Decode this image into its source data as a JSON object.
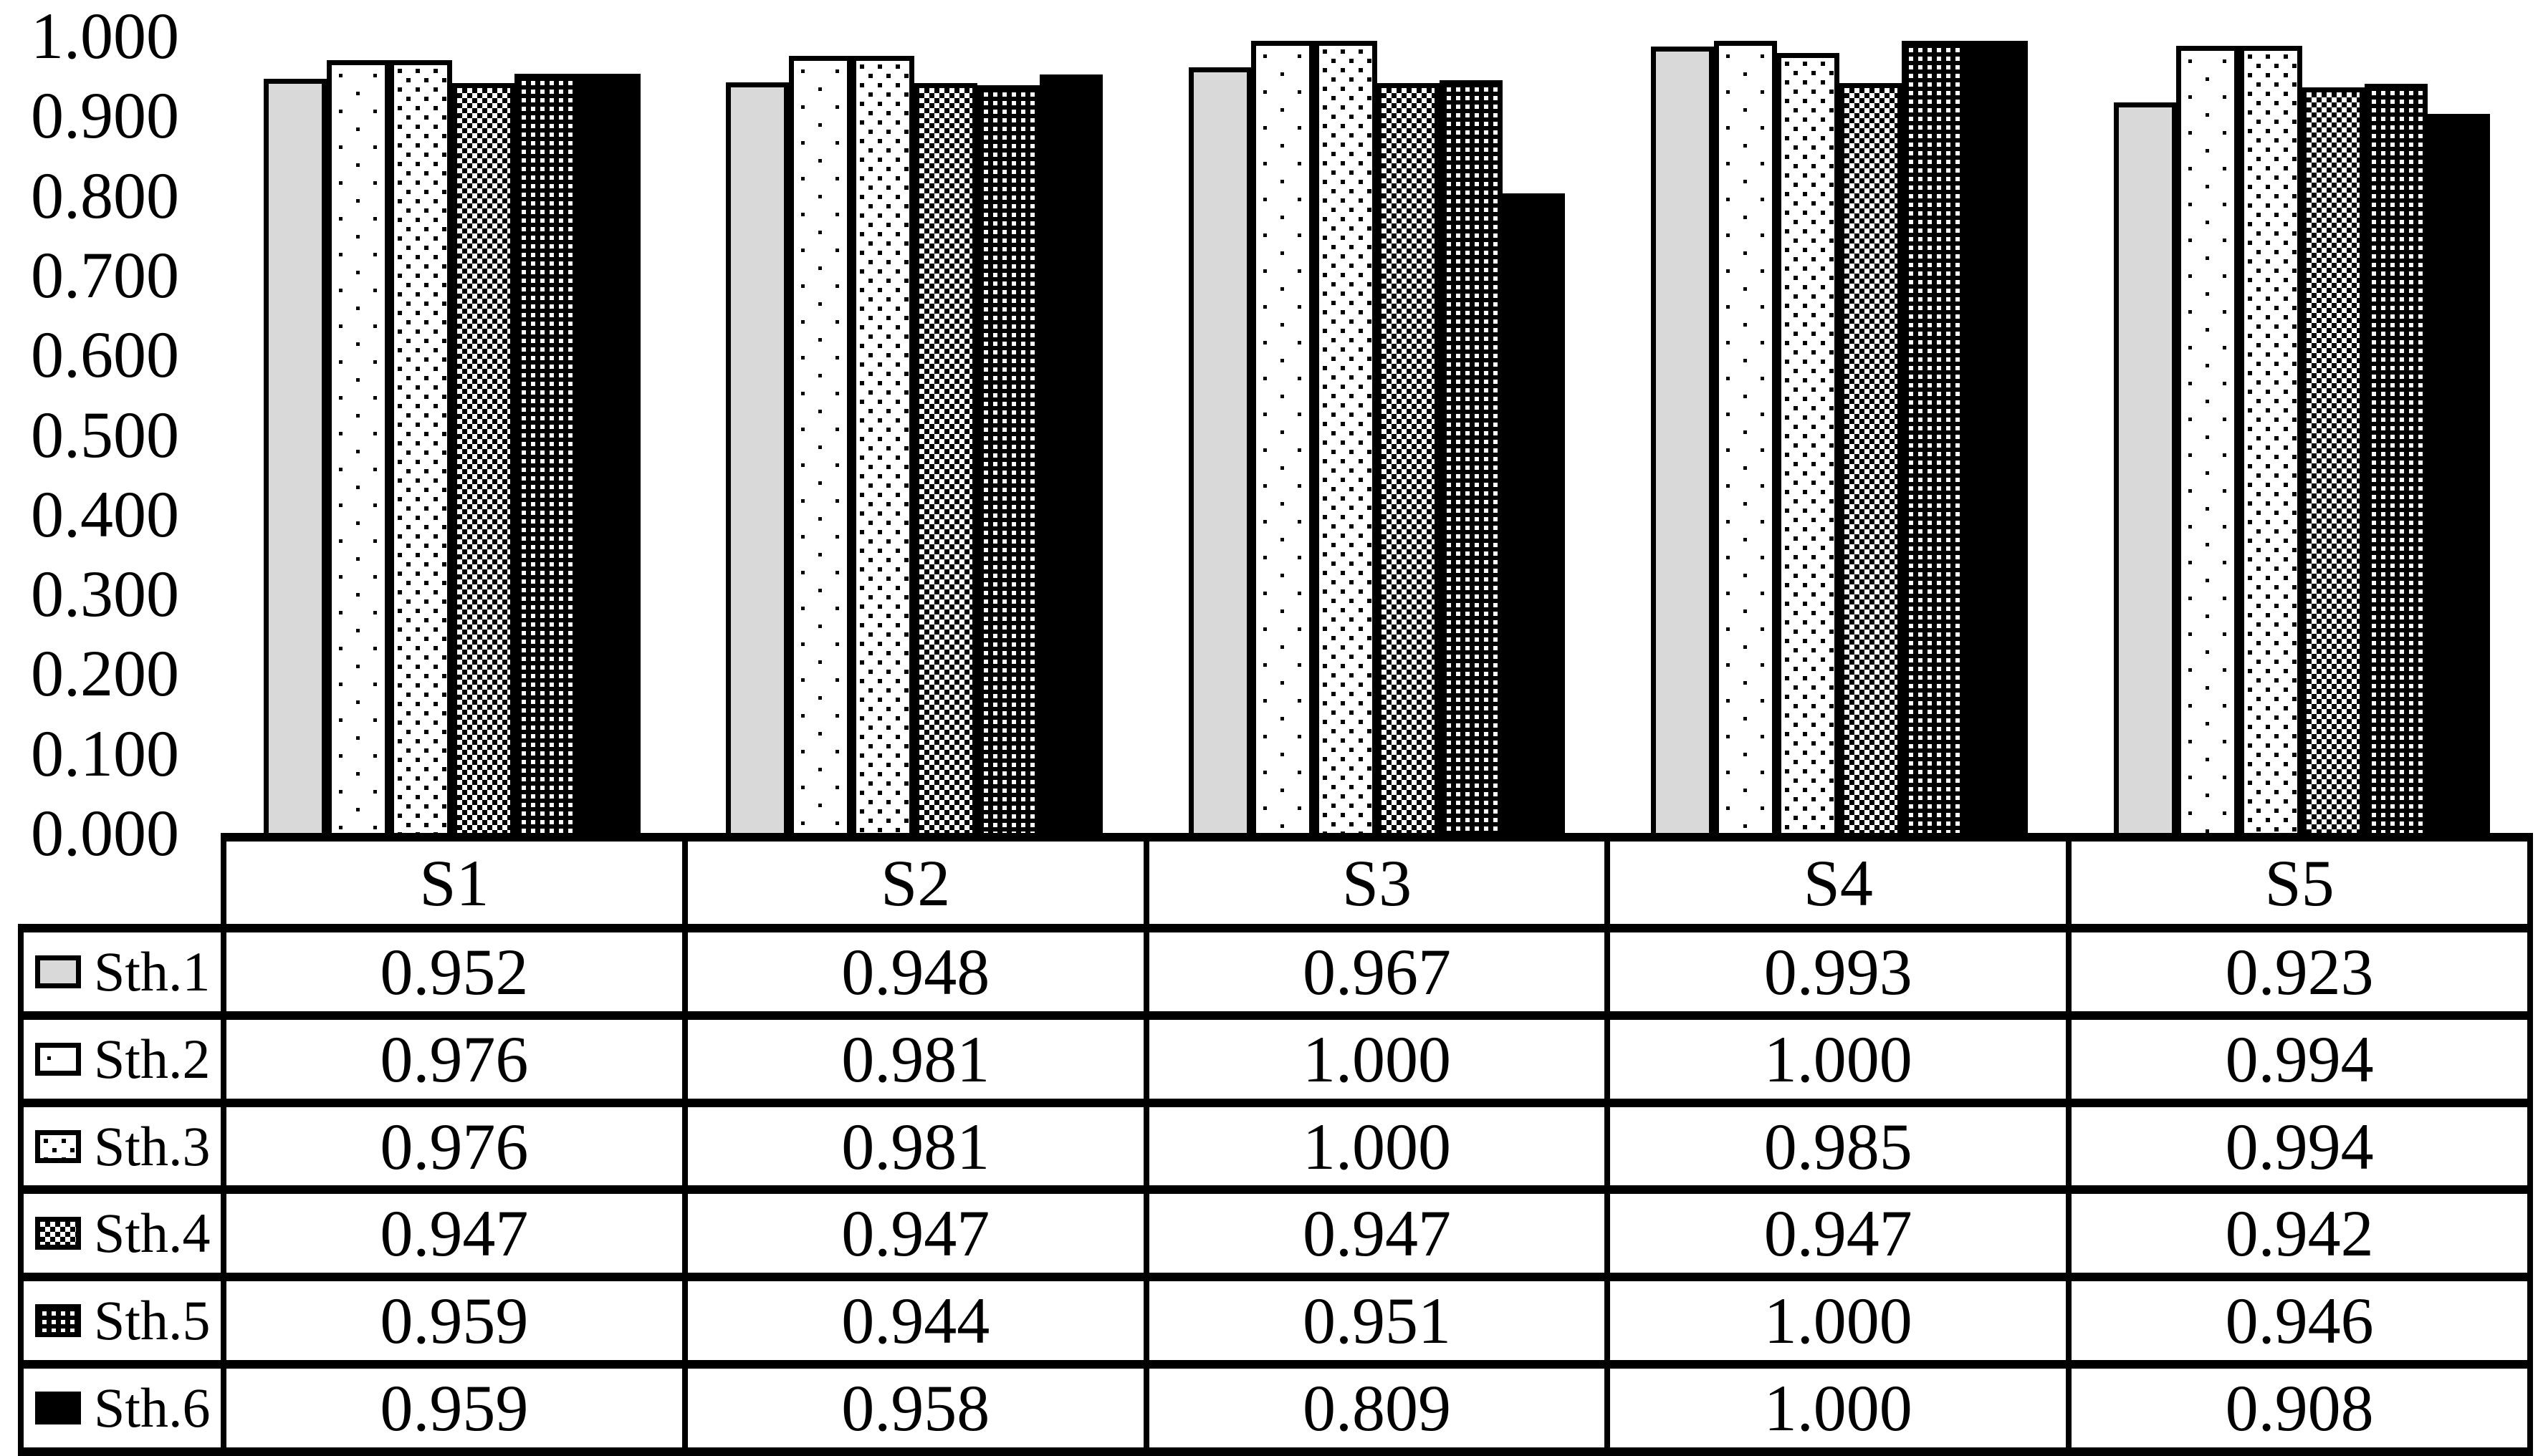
{
  "chart_data": {
    "type": "bar",
    "title": "",
    "xlabel": "",
    "ylabel": "",
    "ylim": [
      0,
      1
    ],
    "grid": false,
    "legend_position": "table-left-column",
    "y_ticks": [
      "1.000",
      "0.900",
      "0.800",
      "0.700",
      "0.600",
      "0.500",
      "0.400",
      "0.300",
      "0.200",
      "0.100",
      "0.000"
    ],
    "categories": [
      "S1",
      "S2",
      "S3",
      "S4",
      "S5"
    ],
    "series": [
      {
        "name": "Sth.1",
        "pattern": "light-gray-solid",
        "values": [
          0.952,
          0.948,
          0.967,
          0.993,
          0.923
        ]
      },
      {
        "name": "Sth.2",
        "pattern": "sparse-black-dots-on-white",
        "values": [
          0.976,
          0.981,
          1.0,
          1.0,
          0.994
        ]
      },
      {
        "name": "Sth.3",
        "pattern": "dense-black-dots-on-white",
        "values": [
          0.976,
          0.981,
          1.0,
          0.985,
          0.994
        ]
      },
      {
        "name": "Sth.4",
        "pattern": "fine-checkerboard",
        "values": [
          0.947,
          0.947,
          0.947,
          0.947,
          0.942
        ]
      },
      {
        "name": "Sth.5",
        "pattern": "white-dots-on-black",
        "values": [
          0.959,
          0.944,
          0.951,
          1.0,
          0.946
        ]
      },
      {
        "name": "Sth.6",
        "pattern": "black-solid",
        "values": [
          0.959,
          0.958,
          0.809,
          1.0,
          0.908
        ]
      }
    ],
    "value_format": "3-decimals"
  },
  "colors": {
    "bar_gray": "#d9d9d9",
    "ink": "#000000",
    "background": "#ffffff"
  }
}
